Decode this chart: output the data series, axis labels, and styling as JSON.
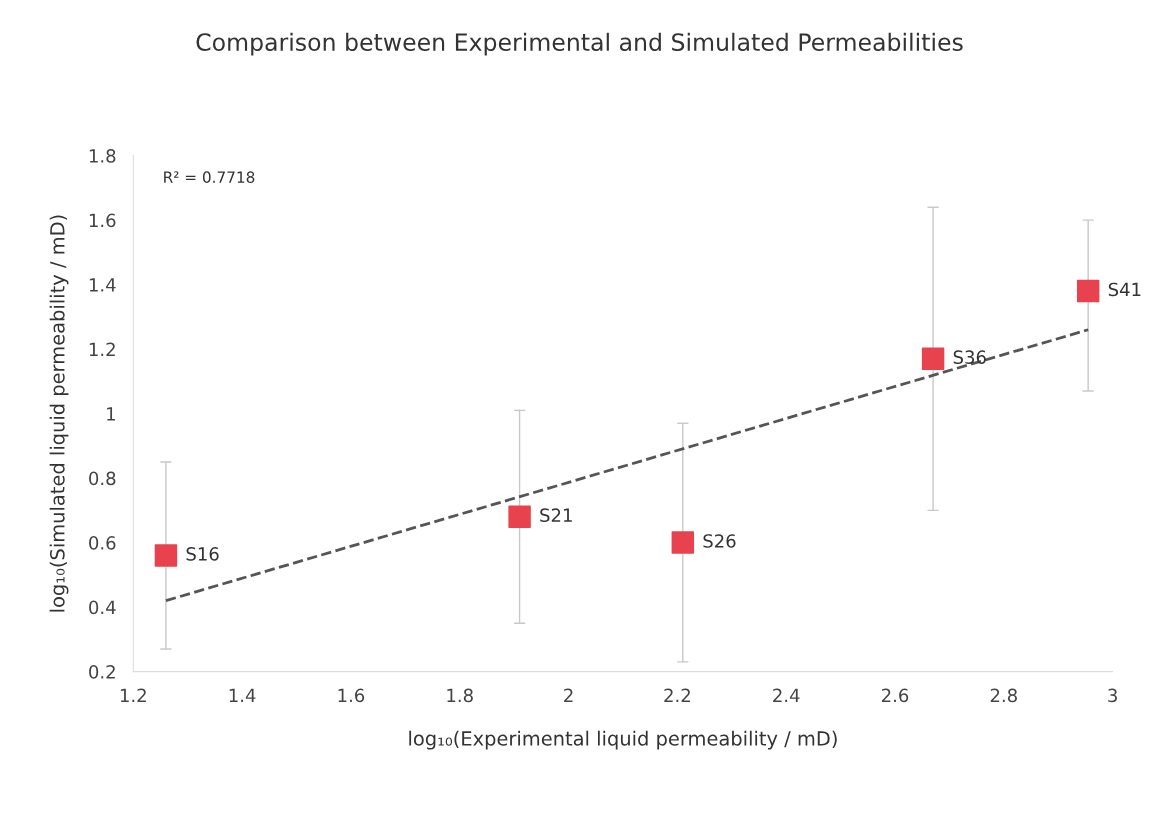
{
  "chart_data": {
    "type": "scatter",
    "title": "Comparison between Experimental and Simulated Permeabilities",
    "xlabel": "log₁₀(Experimental liquid permeability / mD)",
    "ylabel": "log₁₀(Simulated liquid permeability / mD)",
    "xlim": [
      1.2,
      3
    ],
    "xticks": [
      1.2,
      1.4,
      1.6,
      1.8,
      2,
      2.2,
      2.4,
      2.6,
      2.8,
      3
    ],
    "ylim": [
      0.2,
      1.8
    ],
    "yticks": [
      0.2,
      0.4,
      0.6,
      0.8,
      1,
      1.2,
      1.4,
      1.6,
      1.8
    ],
    "grid": false,
    "legend": false,
    "series": [
      {
        "color": "#e8424f",
        "marker": "square",
        "x": [
          1.26,
          1.91,
          2.21,
          2.67,
          2.955
        ],
        "values": [
          0.56,
          0.68,
          0.6,
          1.17,
          1.38
        ],
        "errors": [
          [
            0.27,
            0.85
          ],
          [
            0.35,
            1.01
          ],
          [
            0.23,
            0.97
          ],
          [
            0.7,
            1.64
          ],
          [
            1.07,
            1.6
          ]
        ]
      },
      {
        "type": "line",
        "color": "#555555",
        "line_style": "dashed",
        "marker": "none",
        "x": [
          1.26,
          2.955
        ],
        "values": [
          0.42,
          1.26
        ]
      }
    ],
    "annotations": [
      "R² = 0.7718",
      {
        "text": "S16",
        "x": 1.26,
        "y": 0.56
      },
      {
        "text": "S21",
        "x": 1.91,
        "y": 0.68
      },
      {
        "text": "S26",
        "x": 2.21,
        "y": 0.6
      },
      {
        "text": "S36",
        "x": 2.67,
        "y": 1.17
      },
      {
        "text": "S41",
        "x": 2.955,
        "y": 1.38
      }
    ]
  }
}
